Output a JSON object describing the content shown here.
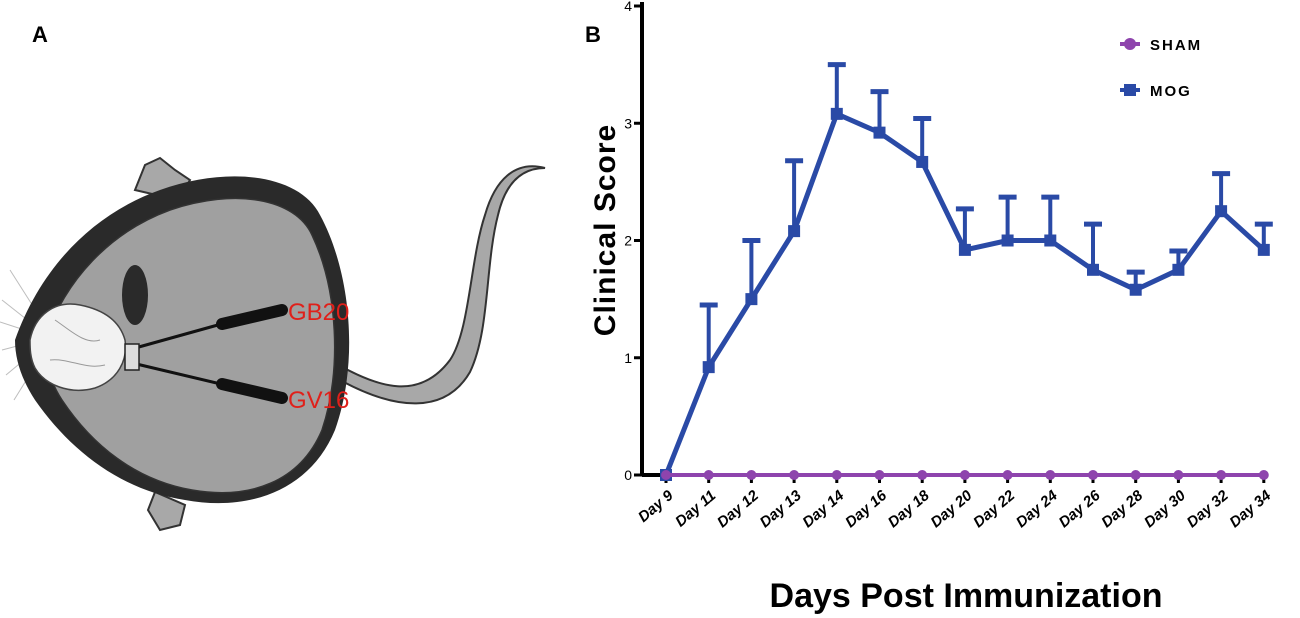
{
  "panel_a": {
    "label": "A",
    "points": [
      "GB20",
      "GV16"
    ]
  },
  "panel_b": {
    "label": "B"
  },
  "colors": {
    "sham": "#8e44ad",
    "mog": "#2a4aa6",
    "acupoint": "#e0201a"
  },
  "chart_data": {
    "type": "line",
    "title": "",
    "xlabel": "Days Post Immunization",
    "ylabel": "Clinical Score",
    "ylim": [
      0,
      4
    ],
    "yticks": [
      "0",
      "1",
      "2",
      "3",
      "4"
    ],
    "categories": [
      "Day 9",
      "Day 11",
      "Day 12",
      "Day 13",
      "Day 14",
      "Day 16",
      "Day 18",
      "Day 20",
      "Day 22",
      "Day 24",
      "Day 26",
      "Day 28",
      "Day 30",
      "Day 32",
      "Day 34"
    ],
    "legend_position": "top-right",
    "series": [
      {
        "name": "SHAM",
        "values": [
          0,
          0,
          0,
          0,
          0,
          0,
          0,
          0,
          0,
          0,
          0,
          0,
          0,
          0,
          0
        ],
        "error": [
          0,
          0,
          0,
          0,
          0,
          0,
          0,
          0,
          0,
          0,
          0,
          0,
          0,
          0,
          0
        ]
      },
      {
        "name": "MOG",
        "values": [
          0,
          0.92,
          1.5,
          2.08,
          3.08,
          2.92,
          2.67,
          1.92,
          2.0,
          2.0,
          1.75,
          1.58,
          1.75,
          2.25,
          1.92
        ],
        "error": [
          0,
          0.53,
          0.5,
          0.6,
          0.42,
          0.35,
          0.37,
          0.35,
          0.37,
          0.37,
          0.39,
          0.15,
          0.16,
          0.32,
          0.22
        ]
      }
    ]
  }
}
